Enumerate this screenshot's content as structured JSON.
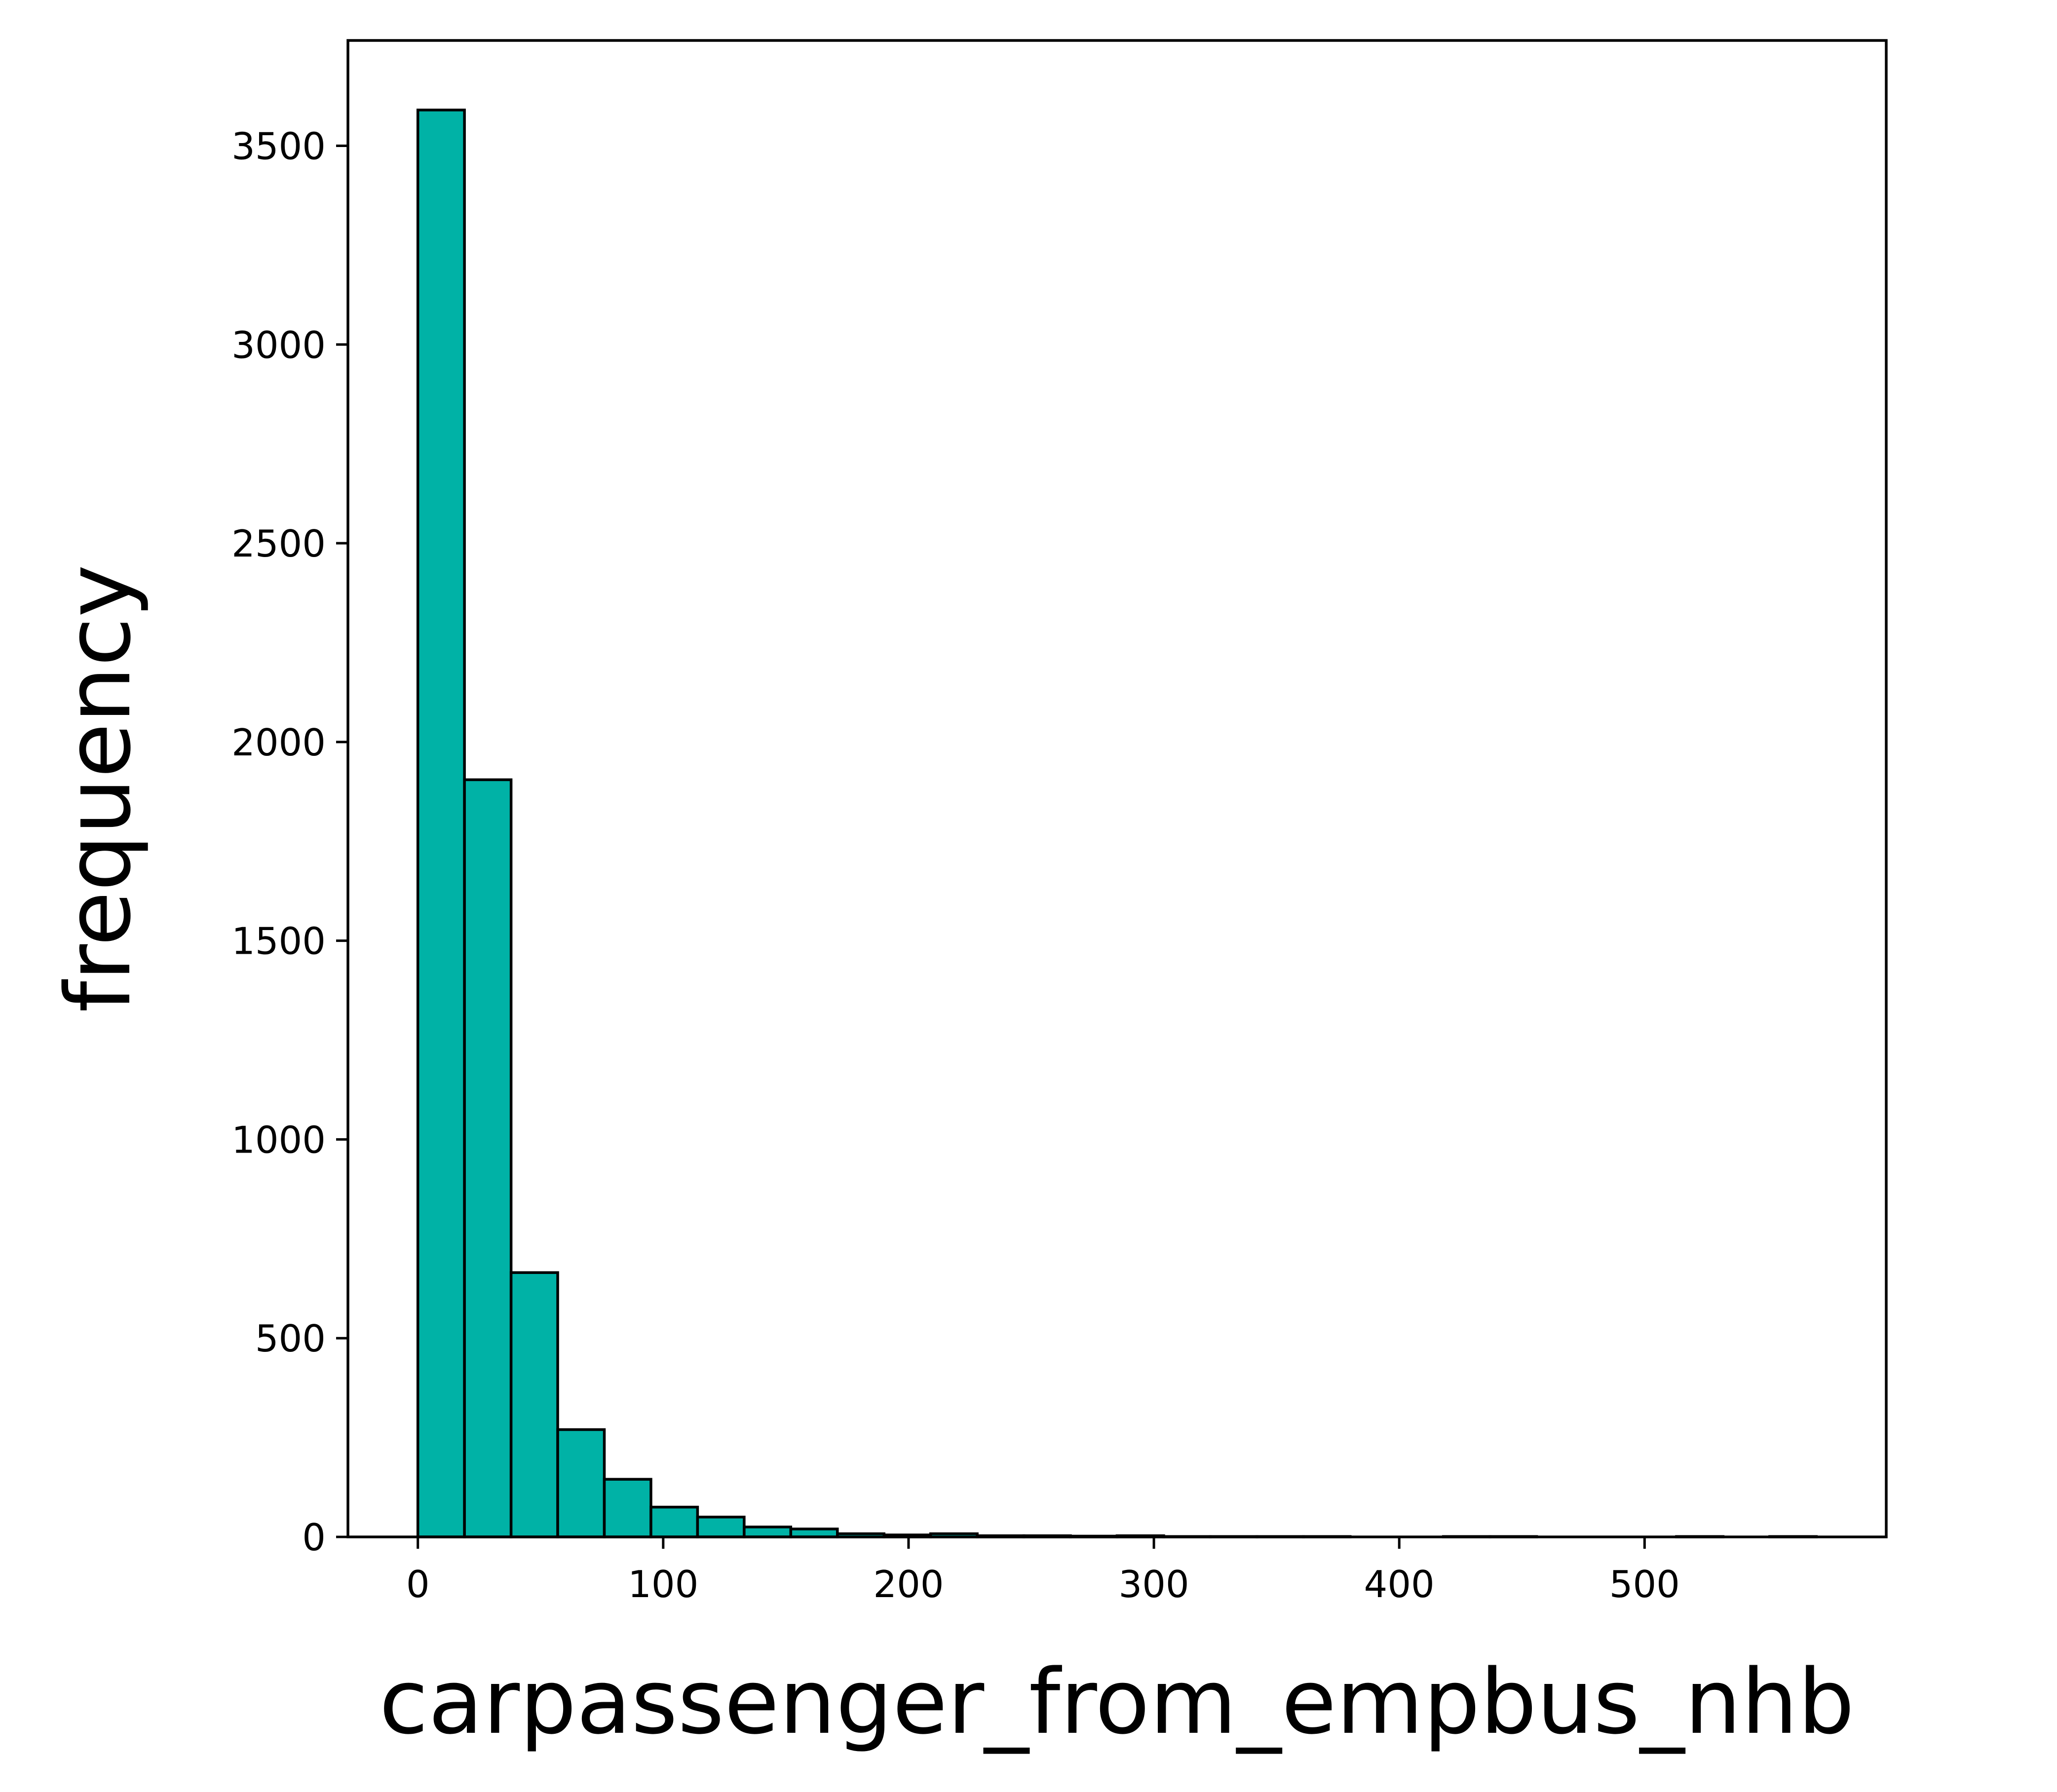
{
  "chart_data": {
    "type": "bar",
    "subtype": "histogram",
    "title": "",
    "xlabel": "carpassenger_from_empbus_nhb",
    "ylabel": "frequency",
    "xlim": [
      -28.5,
      598.5
    ],
    "ylim": [
      0,
      3765
    ],
    "xticks": [
      0,
      100,
      200,
      300,
      400,
      500
    ],
    "yticks": [
      0,
      500,
      1000,
      1500,
      2000,
      2500,
      3000,
      3500
    ],
    "grid": false,
    "legend": false,
    "bin_edges": [
      0,
      19,
      38,
      57,
      76,
      95,
      114,
      133,
      152,
      171,
      190,
      209,
      228,
      247,
      266,
      285,
      304,
      323,
      342,
      361,
      380,
      399,
      418,
      437,
      456,
      475,
      494,
      513,
      532,
      551,
      570
    ],
    "values": [
      3590,
      1905,
      665,
      270,
      145,
      75,
      50,
      25,
      20,
      8,
      5,
      8,
      3,
      3,
      2,
      3,
      1,
      1,
      1,
      1,
      0,
      0,
      1,
      1,
      0,
      0,
      0,
      1,
      0,
      1
    ],
    "colors": {
      "bar_fill": "#00b2a6",
      "bar_edge": "#000000",
      "axes": "#000000",
      "background": "#ffffff"
    }
  }
}
